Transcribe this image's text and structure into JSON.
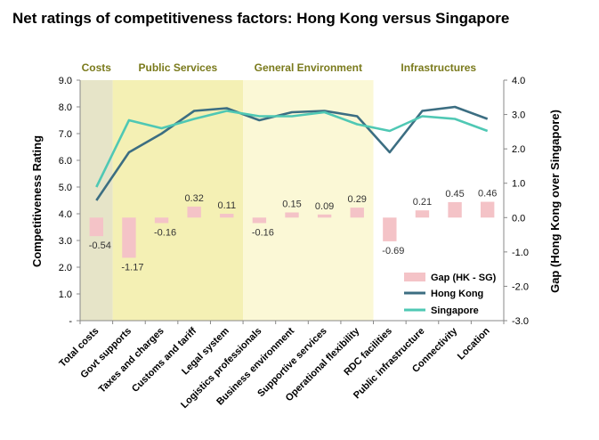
{
  "chart_data": {
    "type": "line",
    "title": "Net ratings of competitiveness factors: Hong Kong versus Singapore",
    "ylabel": "Competitiveness Rating",
    "y2label": "Gap (Hong Kong over Singapore)",
    "ylim": [
      0,
      9
    ],
    "y2lim": [
      -3,
      4
    ],
    "y_ticks": [
      "-",
      "1.0",
      "2.0",
      "3.0",
      "4.0",
      "5.0",
      "6.0",
      "7.0",
      "8.0",
      "9.0"
    ],
    "y2_ticks": [
      "-3.0",
      "-2.0",
      "-1.0",
      "0.0",
      "1.0",
      "2.0",
      "3.0",
      "4.0"
    ],
    "categories": [
      "Total costs",
      "Govt supports",
      "Taxes and charges",
      "Customs and tariff",
      "Legal system",
      "Logistics professionals",
      "Business environment",
      "Supportive services",
      "Operational flexibility",
      "RDC facilities",
      "Public infrastructure",
      "Connectivity",
      "Location"
    ],
    "groups": [
      {
        "label": "Costs",
        "start": 0,
        "end": 0,
        "color": "#e6e4c8"
      },
      {
        "label": "Public Services",
        "start": 1,
        "end": 4,
        "color": "#f4f0b4"
      },
      {
        "label": "General Environment",
        "start": 5,
        "end": 8,
        "color": "#fbf8d6"
      },
      {
        "label": "Infrastructures",
        "start": 9,
        "end": 12,
        "color": "#ffffff"
      }
    ],
    "series": [
      {
        "name": "Gap (HK - SG)",
        "type": "bar",
        "axis": "right",
        "color": "#f4c3c7",
        "values": [
          -0.54,
          -1.17,
          -0.16,
          0.32,
          0.11,
          -0.16,
          0.15,
          0.09,
          0.29,
          -0.69,
          0.21,
          0.45,
          0.46
        ],
        "labels": [
          "-0.54",
          "-1.17",
          "-0.16",
          "0.32",
          "0.11",
          "-0.16",
          "0.15",
          "0.09",
          "0.29",
          "-0.69",
          "0.21",
          "0.45",
          "0.46"
        ]
      },
      {
        "name": "Hong Kong",
        "type": "line",
        "axis": "left",
        "color": "#3c6e82",
        "values": [
          4.5,
          6.3,
          7.0,
          7.85,
          7.95,
          7.5,
          7.8,
          7.85,
          7.65,
          6.3,
          7.85,
          8.0,
          7.55
        ]
      },
      {
        "name": "Singapore",
        "type": "line",
        "axis": "left",
        "color": "#4fc8b4",
        "values": [
          5.0,
          7.5,
          7.2,
          7.55,
          7.85,
          7.65,
          7.65,
          7.8,
          7.35,
          7.1,
          7.65,
          7.55,
          7.1
        ]
      }
    ],
    "legend": "bottom-right"
  }
}
